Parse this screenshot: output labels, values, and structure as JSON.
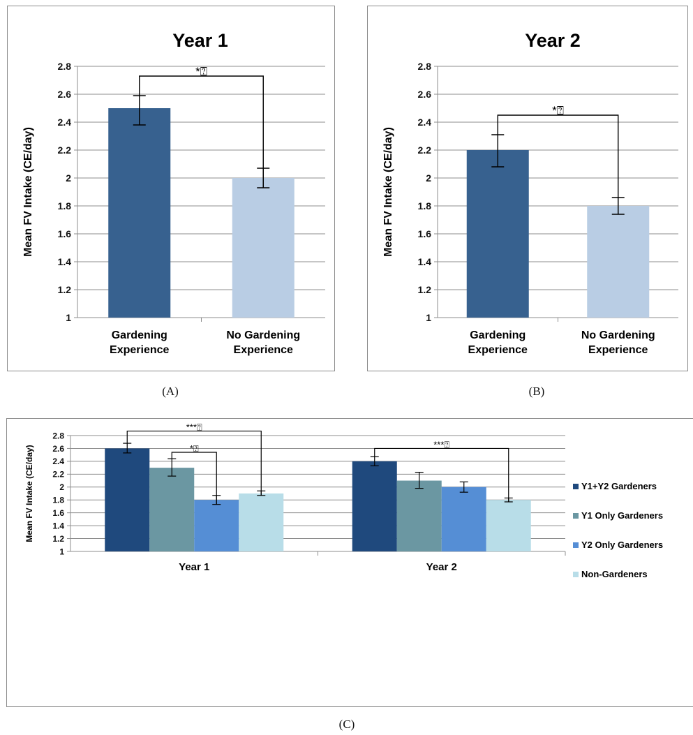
{
  "captions": [
    "(A)",
    "(B)",
    "(C)"
  ],
  "colors": {
    "gardening": "#37618f",
    "no_gardening": "#b9cde4",
    "y1y2": "#1f497d",
    "y1only": "#6b97a2",
    "y2only": "#558ed5",
    "non": "#b8dde8"
  },
  "chart_data": [
    {
      "type": "bar",
      "title": "Year 1",
      "ylabel": "Mean FV Intake (CE/day)",
      "ylim": [
        1,
        2.8
      ],
      "yticks": [
        "1",
        "1.2",
        "1.4",
        "1.6",
        "1.8",
        "2",
        "2.2",
        "2.4",
        "2.6",
        "2.8"
      ],
      "categories": [
        [
          "Gardening",
          "Experience"
        ],
        [
          "No Gardening",
          "Experience"
        ]
      ],
      "values": [
        2.5,
        2.0
      ],
      "error_low": [
        2.38,
        1.93
      ],
      "error_high": [
        2.59,
        2.07
      ],
      "grid": true,
      "significance": [
        {
          "from": 0,
          "to": 1,
          "label": "*⍰"
        }
      ]
    },
    {
      "type": "bar",
      "title": "Year 2",
      "ylabel": "Mean FV Intake (CE/day)",
      "ylim": [
        1,
        2.8
      ],
      "yticks": [
        "1",
        "1.2",
        "1.4",
        "1.6",
        "1.8",
        "2",
        "2.2",
        "2.4",
        "2.6",
        "2.8"
      ],
      "categories": [
        [
          "Gardening",
          "Experience"
        ],
        [
          "No Gardening",
          "Experience"
        ]
      ],
      "values": [
        2.2,
        1.8
      ],
      "error_low": [
        2.08,
        1.74
      ],
      "error_high": [
        2.31,
        1.86
      ],
      "grid": true,
      "significance": [
        {
          "from": 0,
          "to": 1,
          "label": "*⍰"
        }
      ]
    },
    {
      "type": "bar",
      "title": "",
      "ylabel": "Mean FV Intake (CE/day)",
      "ylim": [
        1,
        2.8
      ],
      "yticks": [
        "1",
        "1.2",
        "1.4",
        "1.6",
        "1.8",
        "2",
        "2.2",
        "2.4",
        "2.6",
        "2.8"
      ],
      "categories": [
        "Year 1",
        "Year 2"
      ],
      "series": [
        {
          "name": "Y1+Y2 Gardeners",
          "values": [
            2.6,
            2.4
          ],
          "error_low": [
            2.53,
            2.33
          ],
          "error_high": [
            2.68,
            2.47
          ]
        },
        {
          "name": "Y1 Only Gardeners",
          "values": [
            2.3,
            2.1
          ],
          "error_low": [
            2.17,
            1.98
          ],
          "error_high": [
            2.44,
            2.23
          ]
        },
        {
          "name": "Y2 Only Gardeners",
          "values": [
            1.8,
            2.0
          ],
          "error_low": [
            1.73,
            1.92
          ],
          "error_high": [
            1.87,
            2.08
          ]
        },
        {
          "name": "Non-Gardeners",
          "values": [
            1.9,
            1.8
          ],
          "error_low": [
            1.87,
            1.77
          ],
          "error_high": [
            1.94,
            1.83
          ]
        }
      ],
      "legend": "right",
      "grid": true,
      "significance": [
        {
          "category": 0,
          "from": 0,
          "to": 3,
          "label": "***⍰"
        },
        {
          "category": 0,
          "from": 1,
          "to": 2,
          "label": "*⍰"
        },
        {
          "category": 1,
          "from": 0,
          "to": 3,
          "label": "***⍰"
        }
      ]
    }
  ]
}
